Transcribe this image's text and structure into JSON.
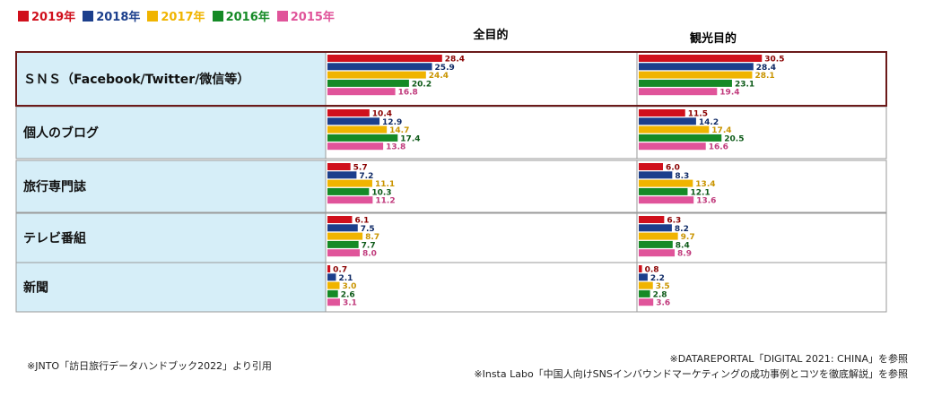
{
  "colors": {
    "2019年": "#d0101c",
    "2018年": "#1c3f8c",
    "2017年": "#f0b400",
    "2016年": "#158a26",
    "2015年": "#e0549a"
  },
  "chart_data": {
    "type": "bar",
    "orientation": "horizontal",
    "legend_position": "top-left",
    "years": [
      "2019年",
      "2018年",
      "2017年",
      "2016年",
      "2015年"
    ],
    "categories": [
      "ＳＮＳ（Facebook/Twitter/微信等）",
      "個人のブログ",
      "旅行専門誌",
      "テレビ番組",
      "新聞"
    ],
    "panels": [
      {
        "title": "全目的",
        "values": [
          [
            28.4,
            25.9,
            24.4,
            20.2,
            16.8
          ],
          [
            10.4,
            12.9,
            14.7,
            17.4,
            13.8
          ],
          [
            5.7,
            7.2,
            11.1,
            10.3,
            11.2
          ],
          [
            6.1,
            7.5,
            8.7,
            7.7,
            8.0
          ],
          [
            0.7,
            2.1,
            3.0,
            2.6,
            3.1
          ]
        ]
      },
      {
        "title": "観光目的",
        "values": [
          [
            30.5,
            28.4,
            28.1,
            23.1,
            19.4
          ],
          [
            11.5,
            14.2,
            17.4,
            20.5,
            16.6
          ],
          [
            6.0,
            8.3,
            13.4,
            12.1,
            13.6
          ],
          [
            6.3,
            8.2,
            9.7,
            8.4,
            8.9
          ],
          [
            0.8,
            2.2,
            3.5,
            2.8,
            3.6
          ]
        ]
      }
    ]
  },
  "notes": {
    "left": "※JNTO「訪日旅行データハンドブック2022」より引用",
    "right1": "※DATAREPORTAL「DIGITAL 2021: CHINA」を参照",
    "right2": "※Insta Labo「中国人向けSNSインバウンドマーケティングの成功事例とコツを徹底解説」を参照"
  }
}
